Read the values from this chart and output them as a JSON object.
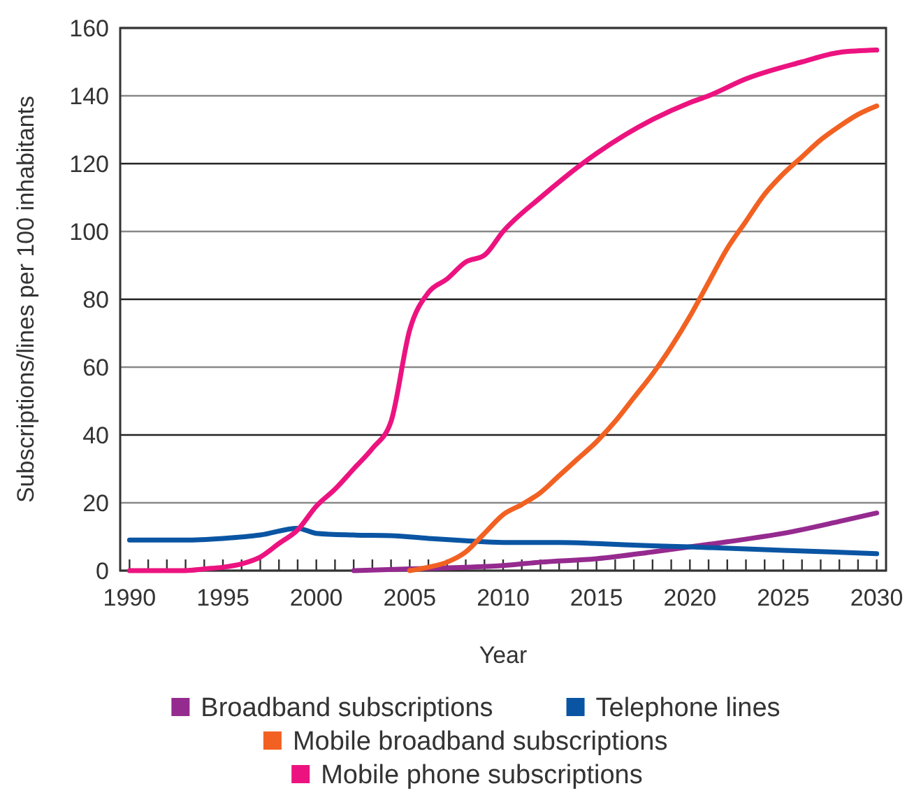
{
  "chart_data": {
    "type": "line",
    "xlabel": "Year",
    "ylabel": "Subscriptions/lines per 100 inhabitants",
    "xlim": [
      1989.5,
      2030.5
    ],
    "xticks": [
      1990,
      {
        "value": 1991,
        "label": null
      },
      {
        "value": 1992,
        "label": null
      },
      {
        "value": 1993,
        "label": null
      },
      {
        "value": 1994,
        "label": null
      },
      1995,
      {
        "value": 1996,
        "label": null
      },
      {
        "value": 1997,
        "label": null
      },
      {
        "value": 1998,
        "label": null
      },
      {
        "value": 1999,
        "label": null
      },
      2000,
      {
        "value": 2001,
        "label": null
      },
      {
        "value": 2002,
        "label": null
      },
      {
        "value": 2003,
        "label": null
      },
      {
        "value": 2004,
        "label": null
      },
      2005,
      {
        "value": 2006,
        "label": null
      },
      {
        "value": 2007,
        "label": null
      },
      {
        "value": 2008,
        "label": null
      },
      {
        "value": 2009,
        "label": null
      },
      2010,
      {
        "value": 2011,
        "label": null
      },
      {
        "value": 2012,
        "label": null
      },
      {
        "value": 2013,
        "label": null
      },
      {
        "value": 2014,
        "label": null
      },
      2015,
      {
        "value": 2016,
        "label": null
      },
      {
        "value": 2017,
        "label": null
      },
      {
        "value": 2018,
        "label": null
      },
      {
        "value": 2019,
        "label": null
      },
      2020,
      {
        "value": 2021,
        "label": null
      },
      {
        "value": 2022,
        "label": null
      },
      {
        "value": 2023,
        "label": null
      },
      {
        "value": 2024,
        "label": null
      },
      2025,
      {
        "value": 2026,
        "label": null
      },
      {
        "value": 2027,
        "label": null
      },
      {
        "value": 2028,
        "label": null
      },
      {
        "value": 2029,
        "label": null
      },
      2030
    ],
    "ylim": [
      0,
      160
    ],
    "yticks": [
      0,
      20,
      40,
      60,
      80,
      100,
      120,
      140,
      160
    ],
    "grid": "y",
    "legend": "bottom",
    "marker": "none",
    "line_style": "solid",
    "series": [
      {
        "name": "Broadband subscriptions",
        "color": "#952a8f",
        "x": [
          2002,
          2005,
          2008,
          2010,
          2012,
          2015,
          2018,
          2020,
          2022,
          2025,
          2028,
          2030
        ],
        "values": [
          0,
          0.5,
          1,
          1.5,
          2.5,
          3.5,
          5.5,
          7,
          8.5,
          11,
          14.5,
          17
        ]
      },
      {
        "name": "Telephone lines",
        "color": "#0a55a3",
        "x": [
          1990,
          1991,
          1992,
          1993,
          1995,
          1997,
          1999,
          2000,
          2002,
          2004,
          2006,
          2008,
          2010,
          2013,
          2015,
          2018,
          2020,
          2025,
          2030
        ],
        "values": [
          9,
          9,
          9,
          9,
          9.5,
          10.5,
          12.5,
          11,
          10.5,
          10.3,
          9.5,
          8.8,
          8.3,
          8.3,
          8,
          7.3,
          7,
          6,
          5
        ]
      },
      {
        "name": "Mobile broadband subscriptions",
        "color": "#f26122",
        "x": [
          2005,
          2006,
          2007,
          2008,
          2009,
          2010,
          2011,
          2012,
          2013,
          2014,
          2015,
          2016,
          2017,
          2018,
          2019,
          2020,
          2021,
          2022,
          2023,
          2024,
          2025,
          2026,
          2027,
          2028,
          2029,
          2030
        ],
        "values": [
          0,
          1,
          2.5,
          5.5,
          11,
          16.5,
          19.5,
          23,
          28,
          33,
          38,
          44,
          51,
          58,
          66,
          75,
          85,
          95,
          103,
          111,
          117,
          122,
          127,
          131,
          134.5,
          137
        ]
      },
      {
        "name": "Mobile phone subscriptions",
        "color": "#ec1380",
        "x": [
          1990,
          1991,
          1992,
          1993,
          1994,
          1995,
          1996,
          1997,
          1998,
          1999,
          2000,
          2001,
          2002,
          2003,
          2004,
          2005,
          2006,
          2007,
          2008,
          2009,
          2010,
          2012,
          2015,
          2018,
          2020,
          2021,
          2023,
          2026,
          2028,
          2030
        ],
        "values": [
          0,
          0,
          0,
          0,
          0.5,
          1,
          2,
          4,
          8,
          12,
          19,
          24,
          30,
          36,
          44,
          71,
          82,
          86,
          91,
          93,
          100,
          110,
          123,
          133,
          138,
          140,
          145,
          150,
          152.8,
          153.5
        ]
      }
    ]
  }
}
